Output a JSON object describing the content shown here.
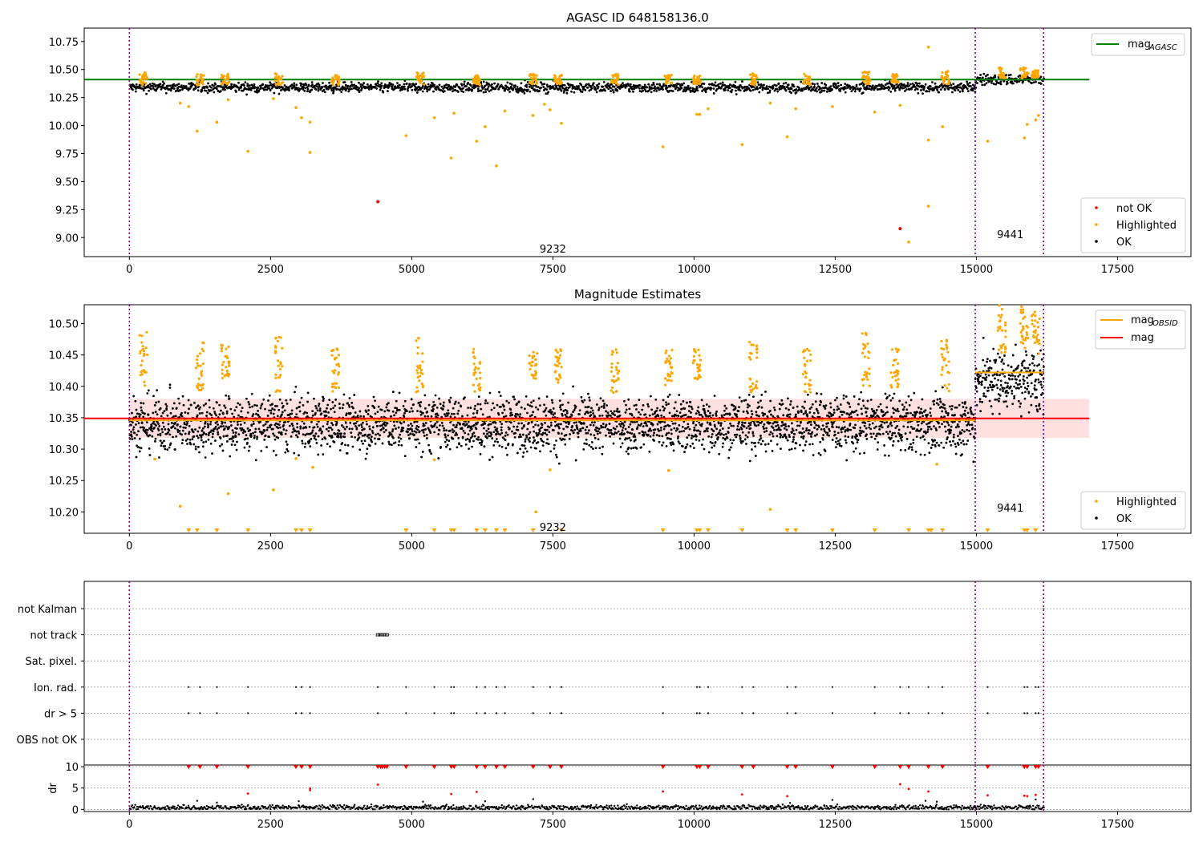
{
  "chart_data": [
    {
      "type": "scatter",
      "title": "AGASC ID 648158136.0",
      "xlim": [
        -800,
        18800
      ],
      "ylim": [
        8.83,
        10.87
      ],
      "xticks": [
        0,
        2500,
        5000,
        7500,
        10000,
        12500,
        15000,
        17500
      ],
      "yticks": [
        9.0,
        9.25,
        9.5,
        9.75,
        10.0,
        10.25,
        10.5,
        10.75
      ],
      "ytick_labels": [
        "9.00",
        "9.25",
        "9.50",
        "9.75",
        "10.00",
        "10.25",
        "10.50",
        "10.75"
      ],
      "obsid_boundaries": [
        0,
        14980,
        16190
      ],
      "obsid_labels": [
        {
          "text": "9232",
          "x": 7500,
          "y": 8.9
        },
        {
          "text": "9441",
          "x": 15600,
          "y": 9.03
        }
      ],
      "lines": [
        {
          "name": "mag_AGASC",
          "label": "mag",
          "sub": "AGASC",
          "color": "#008000",
          "x": [
            -800,
            17000
          ],
          "y": [
            10.41,
            10.41
          ]
        }
      ],
      "ok_segments": [
        {
          "x0": 0,
          "x1": 14980,
          "mean": 10.34,
          "spread": 0.022
        },
        {
          "x0": 14980,
          "x1": 16190,
          "mean": 10.41,
          "spread": 0.025
        }
      ],
      "highlighted_points": [
        {
          "x": 900,
          "y": 10.2
        },
        {
          "x": 1050,
          "y": 10.17
        },
        {
          "x": 1200,
          "y": 9.95
        },
        {
          "x": 1550,
          "y": 10.03
        },
        {
          "x": 1750,
          "y": 10.23
        },
        {
          "x": 2100,
          "y": 9.77
        },
        {
          "x": 2550,
          "y": 10.24
        },
        {
          "x": 2950,
          "y": 10.16
        },
        {
          "x": 3050,
          "y": 10.07
        },
        {
          "x": 3200,
          "y": 10.03
        },
        {
          "x": 3200,
          "y": 9.76
        },
        {
          "x": 4900,
          "y": 9.91
        },
        {
          "x": 5400,
          "y": 10.07
        },
        {
          "x": 5700,
          "y": 9.71
        },
        {
          "x": 5750,
          "y": 10.11
        },
        {
          "x": 6150,
          "y": 9.86
        },
        {
          "x": 6300,
          "y": 9.99
        },
        {
          "x": 6500,
          "y": 9.64
        },
        {
          "x": 6650,
          "y": 10.13
        },
        {
          "x": 7150,
          "y": 10.09
        },
        {
          "x": 7350,
          "y": 10.19
        },
        {
          "x": 7450,
          "y": 10.14
        },
        {
          "x": 7650,
          "y": 10.02
        },
        {
          "x": 9450,
          "y": 9.81
        },
        {
          "x": 10050,
          "y": 10.1
        },
        {
          "x": 10100,
          "y": 10.1
        },
        {
          "x": 10250,
          "y": 10.15
        },
        {
          "x": 10850,
          "y": 9.83
        },
        {
          "x": 11350,
          "y": 10.2
        },
        {
          "x": 11650,
          "y": 9.9
        },
        {
          "x": 11800,
          "y": 10.15
        },
        {
          "x": 12450,
          "y": 10.17
        },
        {
          "x": 13200,
          "y": 10.12
        },
        {
          "x": 13650,
          "y": 10.18
        },
        {
          "x": 13800,
          "y": 8.96
        },
        {
          "x": 14150,
          "y": 9.87
        },
        {
          "x": 14150,
          "y": 9.28
        },
        {
          "x": 14400,
          "y": 9.99
        },
        {
          "x": 14150,
          "y": 10.7
        },
        {
          "x": 15200,
          "y": 9.86
        },
        {
          "x": 15850,
          "y": 9.89
        },
        {
          "x": 15900,
          "y": 10.01
        },
        {
          "x": 16050,
          "y": 10.05
        },
        {
          "x": 16100,
          "y": 10.09
        }
      ],
      "highlighted_clusters": [
        {
          "x": 250,
          "y0": 10.36,
          "y1": 10.48
        },
        {
          "x": 1250,
          "y0": 10.36,
          "y1": 10.46
        },
        {
          "x": 1700,
          "y0": 10.37,
          "y1": 10.46
        },
        {
          "x": 2650,
          "y0": 10.36,
          "y1": 10.47
        },
        {
          "x": 3650,
          "y0": 10.36,
          "y1": 10.45
        },
        {
          "x": 5150,
          "y0": 10.36,
          "y1": 10.48
        },
        {
          "x": 6150,
          "y0": 10.36,
          "y1": 10.45
        },
        {
          "x": 7150,
          "y0": 10.37,
          "y1": 10.46
        },
        {
          "x": 7600,
          "y0": 10.37,
          "y1": 10.45
        },
        {
          "x": 8600,
          "y0": 10.36,
          "y1": 10.46
        },
        {
          "x": 9550,
          "y0": 10.37,
          "y1": 10.45
        },
        {
          "x": 10050,
          "y0": 10.37,
          "y1": 10.45
        },
        {
          "x": 11050,
          "y0": 10.36,
          "y1": 10.47
        },
        {
          "x": 12000,
          "y0": 10.36,
          "y1": 10.46
        },
        {
          "x": 13050,
          "y0": 10.37,
          "y1": 10.48
        },
        {
          "x": 13550,
          "y0": 10.37,
          "y1": 10.46
        },
        {
          "x": 14450,
          "y0": 10.37,
          "y1": 10.49
        },
        {
          "x": 15450,
          "y0": 10.42,
          "y1": 10.52
        },
        {
          "x": 15850,
          "y0": 10.42,
          "y1": 10.52
        },
        {
          "x": 16050,
          "y0": 10.42,
          "y1": 10.5
        }
      ],
      "not_ok_points": [
        {
          "x": 4400,
          "y": 9.32
        },
        {
          "x": 13650,
          "y": 9.08
        }
      ],
      "legend": {
        "upper_right": [
          {
            "label": "mag",
            "sub": "AGASC",
            "type": "line",
            "color": "#008000"
          }
        ],
        "lower_right": [
          {
            "label": "not OK",
            "type": "point",
            "color": "#ff0000"
          },
          {
            "label": "Highlighted",
            "type": "point",
            "color": "#ffa500"
          },
          {
            "label": "OK",
            "type": "point",
            "color": "#000000"
          }
        ]
      }
    },
    {
      "type": "scatter",
      "title": "Magnitude Estimates",
      "xlim": [
        -800,
        18800
      ],
      "ylim": [
        10.166,
        10.53
      ],
      "xticks": [
        0,
        2500,
        5000,
        7500,
        10000,
        12500,
        15000,
        17500
      ],
      "yticks": [
        10.2,
        10.25,
        10.3,
        10.35,
        10.4,
        10.45,
        10.5
      ],
      "ytick_labels": [
        "10.20",
        "10.25",
        "10.30",
        "10.35",
        "10.40",
        "10.45",
        "10.50"
      ],
      "obsid_boundaries": [
        0,
        14980,
        16190
      ],
      "obsid_labels": [
        {
          "text": "9232",
          "x": 7500,
          "y": 10.176
        },
        {
          "text": "9441",
          "x": 15600,
          "y": 10.207
        }
      ],
      "band": {
        "x0": 0,
        "x1": 17000,
        "y0": 10.318,
        "y1": 10.38,
        "color": "#ffcccc"
      },
      "lines": [
        {
          "name": "mag",
          "label": "mag",
          "color": "#ff0000",
          "x": [
            -800,
            17000
          ],
          "y": [
            10.349,
            10.349
          ]
        },
        {
          "name": "mag_OBSID_9232",
          "label": "mag",
          "sub": "OBSID",
          "color": "#ffa500",
          "x": [
            0,
            14980
          ],
          "y": [
            10.346,
            10.346
          ]
        },
        {
          "name": "mag_OBSID_9441",
          "label": "mag",
          "sub": "OBSID",
          "color": "#ffa500",
          "x": [
            14980,
            16190
          ],
          "y": [
            10.422,
            10.422
          ]
        }
      ],
      "ok_segments": [
        {
          "x0": 0,
          "x1": 14980,
          "mean": 10.34,
          "spread": 0.022
        },
        {
          "x0": 14980,
          "x1": 16190,
          "mean": 10.41,
          "spread": 0.025
        }
      ],
      "highlighted_points": [
        {
          "x": 900,
          "y": 10.209
        },
        {
          "x": 1750,
          "y": 10.229
        },
        {
          "x": 2550,
          "y": 10.235
        },
        {
          "x": 7200,
          "y": 10.2
        },
        {
          "x": 11350,
          "y": 10.204
        },
        {
          "x": 450,
          "y": 10.284
        },
        {
          "x": 3250,
          "y": 10.271
        },
        {
          "x": 5400,
          "y": 10.283
        },
        {
          "x": 7450,
          "y": 10.267
        },
        {
          "x": 9550,
          "y": 10.266
        },
        {
          "x": 14300,
          "y": 10.276
        },
        {
          "x": 2950,
          "y": 10.285
        }
      ],
      "highlighted_clusters": [
        {
          "x": 250,
          "y0": 10.4,
          "y1": 10.49
        },
        {
          "x": 1250,
          "y0": 10.39,
          "y1": 10.47
        },
        {
          "x": 1700,
          "y0": 10.41,
          "y1": 10.47
        },
        {
          "x": 2650,
          "y0": 10.39,
          "y1": 10.48
        },
        {
          "x": 3650,
          "y0": 10.39,
          "y1": 10.46
        },
        {
          "x": 5150,
          "y0": 10.39,
          "y1": 10.48
        },
        {
          "x": 6150,
          "y0": 10.39,
          "y1": 10.46
        },
        {
          "x": 7150,
          "y0": 10.41,
          "y1": 10.46
        },
        {
          "x": 7600,
          "y0": 10.4,
          "y1": 10.46
        },
        {
          "x": 8600,
          "y0": 10.39,
          "y1": 10.46
        },
        {
          "x": 9550,
          "y0": 10.4,
          "y1": 10.46
        },
        {
          "x": 10050,
          "y0": 10.41,
          "y1": 10.46
        },
        {
          "x": 11050,
          "y0": 10.39,
          "y1": 10.48
        },
        {
          "x": 12000,
          "y0": 10.39,
          "y1": 10.46
        },
        {
          "x": 13050,
          "y0": 10.4,
          "y1": 10.49
        },
        {
          "x": 13550,
          "y0": 10.39,
          "y1": 10.47
        },
        {
          "x": 14450,
          "y0": 10.39,
          "y1": 10.48
        },
        {
          "x": 15450,
          "y0": 10.45,
          "y1": 10.53
        },
        {
          "x": 15850,
          "y0": 10.46,
          "y1": 10.53
        },
        {
          "x": 16050,
          "y0": 10.45,
          "y1": 10.52
        }
      ],
      "below_range_markers": [
        1050,
        1200,
        1550,
        2100,
        2950,
        3050,
        3200,
        4900,
        5400,
        5700,
        5750,
        6150,
        6300,
        6500,
        6650,
        7150,
        7650,
        9450,
        10050,
        10100,
        10250,
        10850,
        11650,
        11800,
        12450,
        13200,
        13800,
        14150,
        14200,
        14400,
        15200,
        15850,
        15900,
        16050
      ],
      "legend": {
        "upper_right": [
          {
            "label": "mag",
            "sub": "OBSID",
            "type": "line",
            "color": "#ffa500"
          },
          {
            "label": "mag",
            "type": "line",
            "color": "#ff0000"
          }
        ],
        "lower_right": [
          {
            "label": "Highlighted",
            "type": "point",
            "color": "#ffa500"
          },
          {
            "label": "OK",
            "type": "point",
            "color": "#000000"
          }
        ]
      }
    },
    {
      "type": "scatter",
      "xlim": [
        -800,
        18800
      ],
      "categories": [
        "not Kalman",
        "not track",
        "Sat. pixel.",
        "Ion. rad.",
        "dr > 5",
        "OBS not OK"
      ],
      "obsid_boundaries": [
        0,
        14980,
        16190
      ],
      "flags": {
        "not_track": [
          4400,
          4440,
          4470,
          4500,
          4530,
          4560
        ],
        "ion_rad": [
          1050,
          1250,
          1550,
          2100,
          2950,
          3050,
          3200,
          4400,
          4900,
          5400,
          5700,
          5750,
          6150,
          6300,
          6500,
          6650,
          7150,
          7450,
          7650,
          9450,
          10050,
          10100,
          10250,
          10850,
          11050,
          11650,
          11800,
          12450,
          13200,
          13650,
          13800,
          14150,
          14400,
          15200,
          15850,
          15900,
          16050,
          16100
        ],
        "dr_gt_5": [
          1050,
          1250,
          1550,
          2100,
          2950,
          3050,
          3200,
          4400,
          4900,
          5400,
          5700,
          5750,
          6150,
          6300,
          6500,
          6650,
          7150,
          7450,
          7650,
          9450,
          10050,
          10100,
          10250,
          10850,
          11050,
          11650,
          11800,
          12450,
          13200,
          13650,
          13800,
          14150,
          14400,
          15200,
          15850,
          15900,
          16050,
          16100
        ]
      }
    },
    {
      "type": "scatter",
      "ylabel": "dr",
      "xlim": [
        -800,
        18800
      ],
      "ylim": [
        -0.5,
        10.4
      ],
      "xticks": [
        0,
        2500,
        5000,
        7500,
        10000,
        12500,
        15000,
        17500
      ],
      "yticks": [
        0,
        5,
        10
      ],
      "obsid_boundaries": [
        0,
        14980,
        16190
      ],
      "clipped_points_at_10": [
        1050,
        1250,
        1550,
        2100,
        2950,
        3050,
        3200,
        4400,
        4450,
        4480,
        4520,
        4560,
        4900,
        5400,
        5700,
        5750,
        6150,
        6300,
        6500,
        6650,
        7150,
        7450,
        7650,
        9450,
        10050,
        10100,
        10250,
        10850,
        11050,
        11650,
        11800,
        12450,
        13200,
        13650,
        13800,
        14150,
        14400,
        15200,
        15850,
        15900,
        16050,
        16100
      ],
      "red_points": [
        {
          "x": 4400,
          "y": 5.8
        },
        {
          "x": 2100,
          "y": 3.7
        },
        {
          "x": 3200,
          "y": 4.5
        },
        {
          "x": 3200,
          "y": 4.9
        },
        {
          "x": 5700,
          "y": 3.6
        },
        {
          "x": 6150,
          "y": 4.1
        },
        {
          "x": 9450,
          "y": 4.2
        },
        {
          "x": 10850,
          "y": 3.5
        },
        {
          "x": 11650,
          "y": 3.1
        },
        {
          "x": 13650,
          "y": 5.9
        },
        {
          "x": 13800,
          "y": 4.8
        },
        {
          "x": 14150,
          "y": 4.2
        },
        {
          "x": 15200,
          "y": 3.3
        },
        {
          "x": 15850,
          "y": 3.2
        },
        {
          "x": 15900,
          "y": 3.1
        },
        {
          "x": 16050,
          "y": 3.4
        }
      ],
      "black_points": [
        {
          "x": 1200,
          "y": 2.0
        },
        {
          "x": 1550,
          "y": 1.6
        },
        {
          "x": 3000,
          "y": 1.9
        },
        {
          "x": 5200,
          "y": 1.8
        },
        {
          "x": 6300,
          "y": 1.9
        },
        {
          "x": 7150,
          "y": 2.4
        },
        {
          "x": 11700,
          "y": 1.5
        },
        {
          "x": 12450,
          "y": 2.2
        },
        {
          "x": 14100,
          "y": 2.0
        },
        {
          "x": 14300,
          "y": 1.8
        },
        {
          "x": 16050,
          "y": 2.3
        }
      ],
      "baseline": {
        "mean": 0.45,
        "spread": 0.28
      }
    }
  ]
}
